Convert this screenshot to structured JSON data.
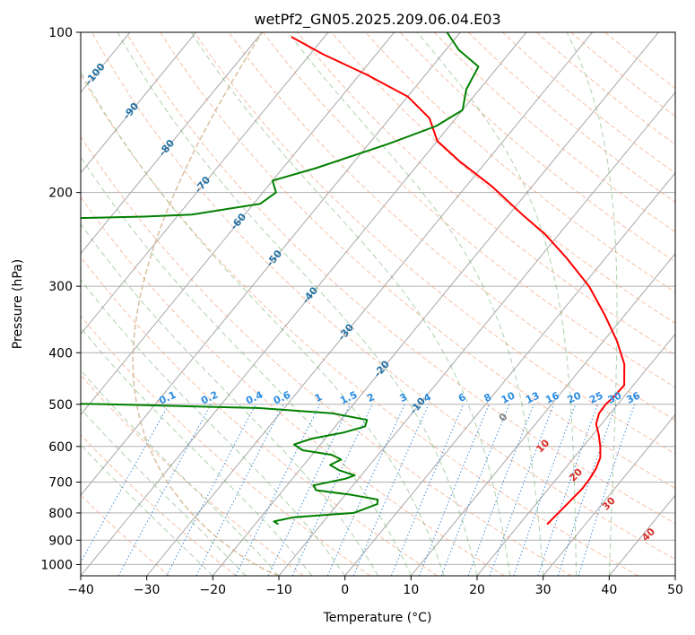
{
  "chart_data": {
    "type": "line",
    "title": "wetPf2_GN05.2025.209.06.04.E03",
    "xlabel": "Temperature (°C)",
    "ylabel": "Pressure (hPa)",
    "xlim": [
      -40,
      50
    ],
    "ylim": [
      1050,
      100
    ],
    "y_scale": "log",
    "skew": "skew-T log-p",
    "grid": true,
    "x_ticks": [
      "−40",
      "−30",
      "−20",
      "−10",
      "0",
      "10",
      "20",
      "30",
      "40",
      "50"
    ],
    "y_ticks": [
      "1000",
      "900",
      "800",
      "700",
      "600",
      "500",
      "400",
      "300",
      "200",
      "100"
    ],
    "isotherm_labels": [
      {
        "t": -100,
        "label": "-100"
      },
      {
        "t": -90,
        "label": "-90"
      },
      {
        "t": -80,
        "label": "-80"
      },
      {
        "t": -70,
        "label": "-70"
      },
      {
        "t": -60,
        "label": "-60"
      },
      {
        "t": -50,
        "label": "-50"
      },
      {
        "t": -40,
        "label": "-40"
      },
      {
        "t": -30,
        "label": "-30"
      },
      {
        "t": -20,
        "label": "-20"
      },
      {
        "t": -10,
        "label": "-10"
      }
    ],
    "mixing_ratio_labels": [
      "0.1",
      "0.2",
      "0.4",
      "0.6",
      "1",
      "1.5",
      "2",
      "3",
      "4",
      "6",
      "8",
      "10",
      "13",
      "16",
      "20",
      "25",
      "30",
      "36"
    ],
    "dry_adiabat_labels": [
      "0",
      "10",
      "20",
      "30",
      "40"
    ],
    "series": [
      {
        "name": "",
        "color": "#ff0000",
        "points": [
          [
            24.2,
            840
          ],
          [
            24.5,
            800
          ],
          [
            24.8,
            760
          ],
          [
            25.1,
            720
          ],
          [
            25.0,
            690
          ],
          [
            24.7,
            660
          ],
          [
            24.0,
            630
          ],
          [
            22.6,
            600
          ],
          [
            20.9,
            570
          ],
          [
            19.2,
            545
          ],
          [
            18.3,
            520
          ],
          [
            18.2,
            500
          ],
          [
            18.5,
            480
          ],
          [
            18.6,
            460
          ],
          [
            16.0,
            420
          ],
          [
            12.0,
            380
          ],
          [
            7.0,
            340
          ],
          [
            1.0,
            300
          ],
          [
            -6.0,
            265
          ],
          [
            -12.0,
            240
          ],
          [
            -18.0,
            220
          ],
          [
            -26.0,
            195
          ],
          [
            -34.0,
            175
          ],
          [
            -40.0,
            160
          ],
          [
            -44.0,
            145
          ],
          [
            -50.0,
            132
          ],
          [
            -59.0,
            120
          ],
          [
            -68.0,
            110
          ],
          [
            -75.0,
            102
          ]
        ]
      },
      {
        "name": "",
        "color": "#008000",
        "points": [
          [
            -16.5,
            840
          ],
          [
            -17.5,
            830
          ],
          [
            -15.0,
            815
          ],
          [
            -6.5,
            800
          ],
          [
            -4.0,
            770
          ],
          [
            -4.5,
            755
          ],
          [
            -9.0,
            740
          ],
          [
            -15.0,
            725
          ],
          [
            -16.0,
            710
          ],
          [
            -12.0,
            690
          ],
          [
            -11.0,
            680
          ],
          [
            -14.0,
            665
          ],
          [
            -16.0,
            650
          ],
          [
            -15.0,
            635
          ],
          [
            -17.0,
            622
          ],
          [
            -22.0,
            610
          ],
          [
            -24.0,
            595
          ],
          [
            -22.0,
            580
          ],
          [
            -18.0,
            565
          ],
          [
            -15.5,
            550
          ],
          [
            -16.0,
            535
          ],
          [
            -22.0,
            520
          ],
          [
            -34.0,
            508
          ],
          [
            -57.0,
            500
          ],
          [
            -65.0,
            498
          ],
          [
            -90.0,
            300
          ],
          [
            -95.0,
            280
          ],
          [
            -95.0,
            250
          ],
          [
            -95.0,
            225
          ],
          [
            -75.0,
            222
          ],
          [
            -68.0,
            220
          ],
          [
            -59.0,
            210
          ],
          [
            -58.0,
            200
          ],
          [
            -60.0,
            190
          ],
          [
            -55.0,
            180
          ],
          [
            -47.0,
            162
          ],
          [
            -42.0,
            150
          ],
          [
            -40.0,
            140
          ],
          [
            -42.0,
            128
          ],
          [
            -43.0,
            116
          ],
          [
            -48.0,
            108
          ],
          [
            -52.0,
            100
          ]
        ]
      }
    ]
  }
}
